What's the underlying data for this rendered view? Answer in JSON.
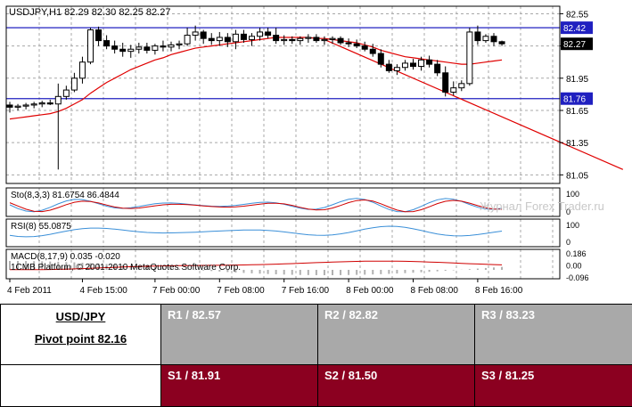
{
  "chart_data": {
    "type": "candlestick",
    "symbol_header": "USDJPY,H1  82.29 82.30 82.25 82.27",
    "price_axis_ticks": [
      "82.55",
      "82.25",
      "81.95",
      "81.65",
      "81.35",
      "81.05"
    ],
    "price_labels": [
      {
        "value": 82.42,
        "text": "82.42",
        "color": "#2020c0"
      },
      {
        "value": 82.27,
        "text": "82.27",
        "color": "#000000"
      },
      {
        "value": 81.76,
        "text": "81.76",
        "color": "#2020c0"
      }
    ],
    "ylim": [
      80.97,
      82.62
    ],
    "horizontal_levels": [
      82.42,
      81.76
    ],
    "time_labels": [
      "4 Feb 2011",
      "4 Feb 15:00",
      "7 Feb 00:00",
      "7 Feb 08:00",
      "7 Feb 16:00",
      "8 Feb 00:00",
      "8 Feb 08:00",
      "8 Feb 16:00"
    ],
    "time_label_bars": [
      0,
      9,
      18,
      26,
      34,
      42,
      50,
      58
    ],
    "candles": [
      {
        "o": 81.7,
        "h": 81.73,
        "l": 81.63,
        "c": 81.68
      },
      {
        "o": 81.68,
        "h": 81.71,
        "l": 81.65,
        "c": 81.69
      },
      {
        "o": 81.69,
        "h": 81.72,
        "l": 81.66,
        "c": 81.7
      },
      {
        "o": 81.7,
        "h": 81.73,
        "l": 81.67,
        "c": 81.71
      },
      {
        "o": 81.71,
        "h": 81.74,
        "l": 81.68,
        "c": 81.72
      },
      {
        "o": 81.72,
        "h": 81.75,
        "l": 81.7,
        "c": 81.71
      },
      {
        "o": 81.71,
        "h": 81.9,
        "l": 81.1,
        "c": 81.78
      },
      {
        "o": 81.78,
        "h": 81.88,
        "l": 81.75,
        "c": 81.84
      },
      {
        "o": 81.84,
        "h": 82.0,
        "l": 81.82,
        "c": 81.95
      },
      {
        "o": 81.95,
        "h": 82.15,
        "l": 81.9,
        "c": 82.1
      },
      {
        "o": 82.1,
        "h": 82.42,
        "l": 82.08,
        "c": 82.4
      },
      {
        "o": 82.4,
        "h": 82.43,
        "l": 82.25,
        "c": 82.3
      },
      {
        "o": 82.3,
        "h": 82.35,
        "l": 82.22,
        "c": 82.25
      },
      {
        "o": 82.25,
        "h": 82.3,
        "l": 82.18,
        "c": 82.22
      },
      {
        "o": 82.22,
        "h": 82.28,
        "l": 82.15,
        "c": 82.2
      },
      {
        "o": 82.2,
        "h": 82.26,
        "l": 82.14,
        "c": 82.22
      },
      {
        "o": 82.22,
        "h": 82.28,
        "l": 82.18,
        "c": 82.24
      },
      {
        "o": 82.24,
        "h": 82.28,
        "l": 82.18,
        "c": 82.21
      },
      {
        "o": 82.21,
        "h": 82.27,
        "l": 82.17,
        "c": 82.25
      },
      {
        "o": 82.25,
        "h": 82.3,
        "l": 82.2,
        "c": 82.24
      },
      {
        "o": 82.24,
        "h": 82.29,
        "l": 82.2,
        "c": 82.26
      },
      {
        "o": 82.26,
        "h": 82.3,
        "l": 82.22,
        "c": 82.27
      },
      {
        "o": 82.27,
        "h": 82.42,
        "l": 82.25,
        "c": 82.35
      },
      {
        "o": 82.35,
        "h": 82.44,
        "l": 82.3,
        "c": 82.38
      },
      {
        "o": 82.38,
        "h": 82.4,
        "l": 82.27,
        "c": 82.32
      },
      {
        "o": 82.32,
        "h": 82.37,
        "l": 82.26,
        "c": 82.3
      },
      {
        "o": 82.3,
        "h": 82.38,
        "l": 82.25,
        "c": 82.33
      },
      {
        "o": 82.33,
        "h": 82.37,
        "l": 82.24,
        "c": 82.29
      },
      {
        "o": 82.29,
        "h": 82.4,
        "l": 82.22,
        "c": 82.36
      },
      {
        "o": 82.36,
        "h": 82.4,
        "l": 82.28,
        "c": 82.31
      },
      {
        "o": 82.31,
        "h": 82.37,
        "l": 82.25,
        "c": 82.34
      },
      {
        "o": 82.34,
        "h": 82.42,
        "l": 82.3,
        "c": 82.38
      },
      {
        "o": 82.38,
        "h": 82.42,
        "l": 82.32,
        "c": 82.35
      },
      {
        "o": 82.35,
        "h": 82.42,
        "l": 82.27,
        "c": 82.3
      },
      {
        "o": 82.3,
        "h": 82.35,
        "l": 82.26,
        "c": 82.31
      },
      {
        "o": 82.31,
        "h": 82.34,
        "l": 82.27,
        "c": 82.3
      },
      {
        "o": 82.3,
        "h": 82.34,
        "l": 82.26,
        "c": 82.32
      },
      {
        "o": 82.32,
        "h": 82.36,
        "l": 82.28,
        "c": 82.33
      },
      {
        "o": 82.33,
        "h": 82.36,
        "l": 82.28,
        "c": 82.3
      },
      {
        "o": 82.3,
        "h": 82.34,
        "l": 82.26,
        "c": 82.31
      },
      {
        "o": 82.31,
        "h": 82.34,
        "l": 82.27,
        "c": 82.32
      },
      {
        "o": 82.32,
        "h": 82.34,
        "l": 82.26,
        "c": 82.28
      },
      {
        "o": 82.28,
        "h": 82.32,
        "l": 82.24,
        "c": 82.27
      },
      {
        "o": 82.27,
        "h": 82.31,
        "l": 82.23,
        "c": 82.25
      },
      {
        "o": 82.25,
        "h": 82.29,
        "l": 82.2,
        "c": 82.22
      },
      {
        "o": 82.22,
        "h": 82.27,
        "l": 82.15,
        "c": 82.18
      },
      {
        "o": 82.18,
        "h": 82.22,
        "l": 82.05,
        "c": 82.08
      },
      {
        "o": 82.08,
        "h": 82.12,
        "l": 82.0,
        "c": 82.02
      },
      {
        "o": 82.02,
        "h": 82.08,
        "l": 81.98,
        "c": 82.05
      },
      {
        "o": 82.05,
        "h": 82.12,
        "l": 82.02,
        "c": 82.09
      },
      {
        "o": 82.09,
        "h": 82.13,
        "l": 82.03,
        "c": 82.06
      },
      {
        "o": 82.06,
        "h": 82.15,
        "l": 82.02,
        "c": 82.12
      },
      {
        "o": 82.12,
        "h": 82.16,
        "l": 82.05,
        "c": 82.08
      },
      {
        "o": 82.08,
        "h": 82.12,
        "l": 81.97,
        "c": 82.0
      },
      {
        "o": 82.0,
        "h": 82.06,
        "l": 81.78,
        "c": 81.82
      },
      {
        "o": 81.82,
        "h": 81.92,
        "l": 81.79,
        "c": 81.86
      },
      {
        "o": 81.86,
        "h": 81.93,
        "l": 81.83,
        "c": 81.9
      },
      {
        "o": 81.9,
        "h": 82.42,
        "l": 81.88,
        "c": 82.38
      },
      {
        "o": 82.38,
        "h": 82.44,
        "l": 82.26,
        "c": 82.3
      },
      {
        "o": 82.3,
        "h": 82.36,
        "l": 82.28,
        "c": 82.34
      },
      {
        "o": 82.34,
        "h": 82.37,
        "l": 82.25,
        "c": 82.29
      },
      {
        "o": 82.29,
        "h": 82.3,
        "l": 82.25,
        "c": 82.27
      }
    ],
    "moving_average": [
      81.57,
      81.58,
      81.59,
      81.6,
      81.61,
      81.62,
      81.64,
      81.67,
      81.71,
      81.75,
      81.81,
      81.86,
      81.91,
      81.95,
      81.99,
      82.03,
      82.06,
      82.09,
      82.12,
      82.14,
      82.17,
      82.19,
      82.21,
      82.23,
      82.24,
      82.25,
      82.26,
      82.27,
      82.28,
      82.29,
      82.3,
      82.31,
      82.32,
      82.33,
      82.33,
      82.33,
      82.33,
      82.33,
      82.32,
      82.32,
      82.31,
      82.3,
      82.29,
      82.28,
      82.26,
      82.24,
      82.21,
      82.19,
      82.17,
      82.15,
      82.14,
      82.13,
      82.12,
      82.11,
      82.1,
      82.09,
      82.08,
      82.08,
      82.09,
      82.1,
      82.11,
      82.12
    ],
    "trendline": {
      "from": {
        "bar": 39,
        "value": 82.31
      },
      "to": {
        "bar": 76,
        "value": 81.1
      }
    },
    "indicators": [
      {
        "label": "Sto(8,3,3) 81.6754 86.4844",
        "scale": [
          "100",
          "0"
        ]
      },
      {
        "label": "RSI(8) 55.0875",
        "scale": [
          "100",
          "0"
        ]
      },
      {
        "label": "MACD(8,17,9) 0.035 -0.020",
        "scale": [
          "0.186",
          "0.00",
          "-0.096"
        ]
      }
    ],
    "platform_text": "1CMB Platform, © 2001-2010 MetaQuotes Software Corp.",
    "watermark": "Журнал Forex Trader.ru",
    "colors": {
      "bull": "#ffffff",
      "bear": "#000000",
      "ma": "#e00000",
      "level": "#2020c0",
      "grid": "#a8a8a8"
    }
  },
  "pivot_table": {
    "pair": "USD/JPY",
    "pivot": "Pivot point 82.16",
    "resistance": [
      "R1 / 82.57",
      "R2 / 82.82",
      "R3 / 83.23"
    ],
    "support": [
      "S1 / 81.91",
      "S2 / 81.50",
      "S3 / 81.25"
    ]
  }
}
